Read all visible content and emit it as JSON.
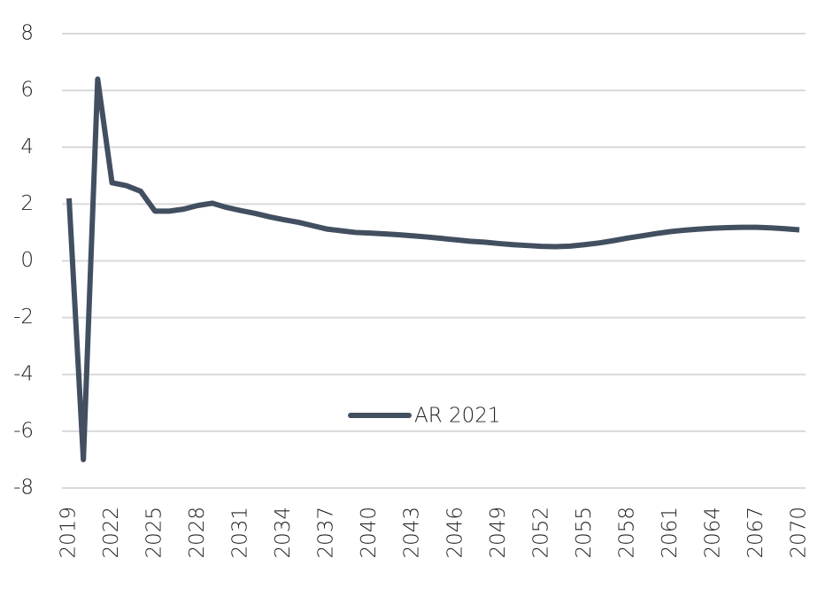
{
  "chart_data": {
    "type": "line",
    "x": [
      2019,
      2020,
      2021,
      2022,
      2023,
      2024,
      2025,
      2026,
      2027,
      2028,
      2029,
      2030,
      2031,
      2032,
      2033,
      2034,
      2035,
      2036,
      2037,
      2038,
      2039,
      2040,
      2041,
      2042,
      2043,
      2044,
      2045,
      2046,
      2047,
      2048,
      2049,
      2050,
      2051,
      2052,
      2053,
      2054,
      2055,
      2056,
      2057,
      2058,
      2059,
      2060,
      2061,
      2062,
      2063,
      2064,
      2065,
      2066,
      2067,
      2068,
      2069,
      2070
    ],
    "series": [
      {
        "name": "AR 2021",
        "color": "#424f60",
        "values": [
          2.2,
          -7.0,
          6.4,
          2.75,
          2.65,
          2.45,
          1.75,
          1.75,
          1.82,
          1.95,
          2.03,
          1.88,
          1.77,
          1.67,
          1.55,
          1.45,
          1.36,
          1.24,
          1.12,
          1.06,
          1.0,
          0.98,
          0.95,
          0.92,
          0.88,
          0.84,
          0.79,
          0.74,
          0.69,
          0.66,
          0.61,
          0.57,
          0.54,
          0.51,
          0.5,
          0.52,
          0.57,
          0.63,
          0.71,
          0.8,
          0.88,
          0.96,
          1.03,
          1.08,
          1.12,
          1.15,
          1.17,
          1.18,
          1.18,
          1.16,
          1.13,
          1.09
        ]
      }
    ],
    "xlim": [
      2019,
      2070
    ],
    "xticks": [
      2019,
      2022,
      2025,
      2028,
      2031,
      2034,
      2037,
      2040,
      2043,
      2046,
      2049,
      2052,
      2055,
      2058,
      2061,
      2064,
      2067,
      2070
    ],
    "ylim": [
      -8,
      8
    ],
    "yticks": [
      -8,
      -6,
      -4,
      -2,
      0,
      2,
      4,
      6,
      8
    ],
    "grid": true
  }
}
